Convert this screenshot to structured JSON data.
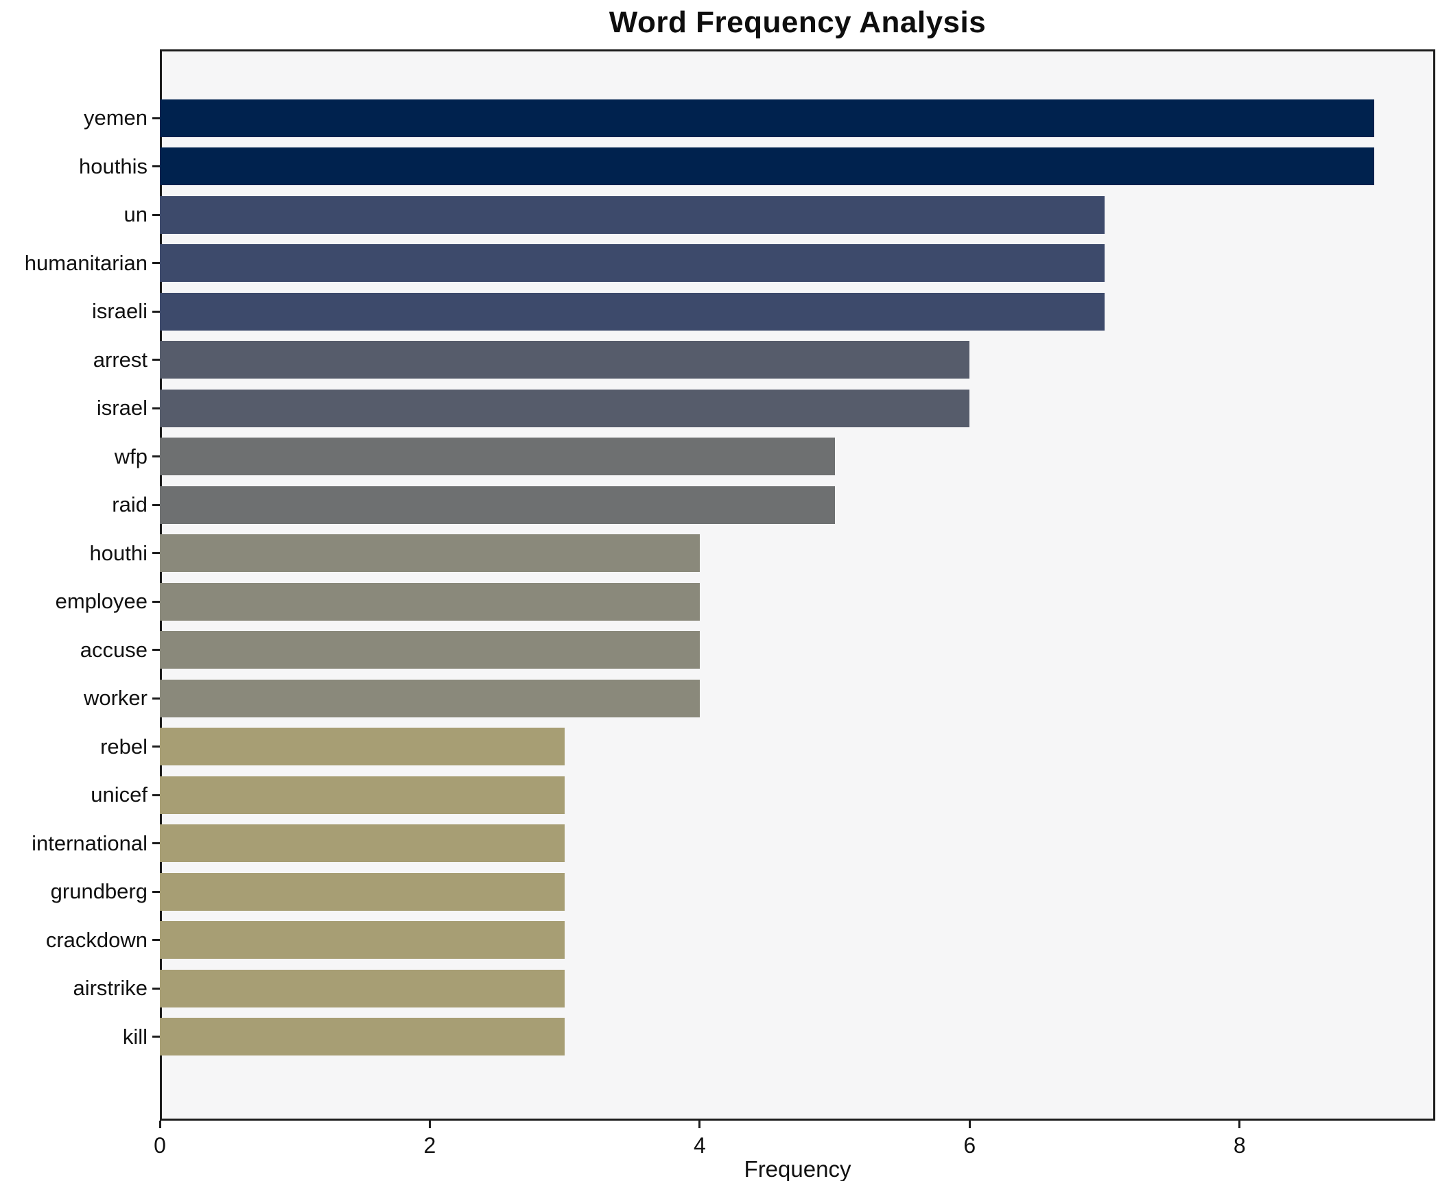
{
  "title": "Word Frequency Analysis",
  "chart_data": {
    "type": "bar",
    "orientation": "horizontal",
    "title": "Word Frequency Analysis",
    "xlabel": "Frequency",
    "ylabel": "",
    "categories": [
      "yemen",
      "houthis",
      "un",
      "humanitarian",
      "israeli",
      "arrest",
      "israel",
      "wfp",
      "raid",
      "houthi",
      "employee",
      "accuse",
      "worker",
      "rebel",
      "unicef",
      "international",
      "grundberg",
      "crackdown",
      "airstrike",
      "kill"
    ],
    "values": [
      9,
      9,
      7,
      7,
      7,
      6,
      6,
      5,
      5,
      4,
      4,
      4,
      4,
      3,
      3,
      3,
      3,
      3,
      3,
      3
    ],
    "bar_colors": [
      "#00224e",
      "#00224e",
      "#3d4a6b",
      "#3d4a6b",
      "#3d4a6b",
      "#565c6b",
      "#565c6b",
      "#6e7071",
      "#6e7071",
      "#8a897b",
      "#8a897b",
      "#8a897b",
      "#8a897b",
      "#a79e74",
      "#a79e74",
      "#a79e74",
      "#a79e74",
      "#a79e74",
      "#a79e74",
      "#a79e74"
    ],
    "xlim": [
      0,
      9.45
    ],
    "xticks": [
      0,
      2,
      4,
      6,
      8
    ],
    "grid": false,
    "legend": false,
    "plot_background": "#f6f6f7",
    "figure_background": "#ffffff",
    "spine_color": "#1c1c1c"
  }
}
